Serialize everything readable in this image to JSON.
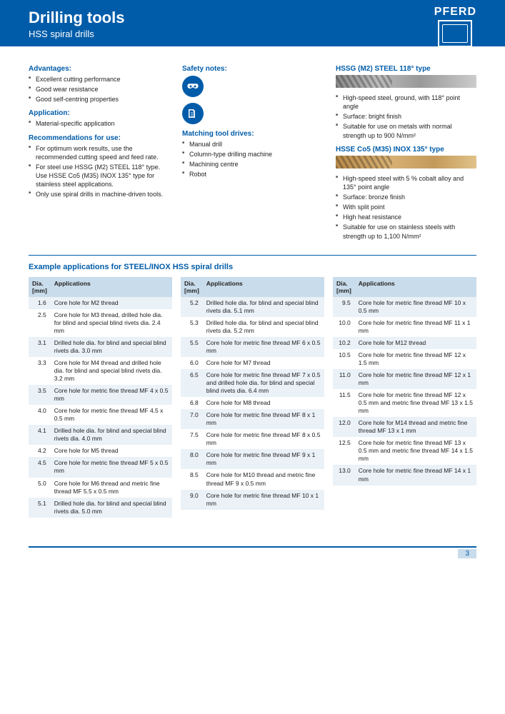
{
  "brand": "PFERD",
  "header": {
    "title": "Drilling tools",
    "subtitle": "HSS spiral drills"
  },
  "col1": {
    "advantages_h": "Advantages:",
    "advantages": [
      "Excellent cutting performance",
      "Good wear resistance",
      "Good self-centring properties"
    ],
    "applications_h": "Application:",
    "applications": [
      "Material-specific application"
    ],
    "rec_h": "Recommendations for use:",
    "rec": [
      "For optimum work results, use the recommended cutting speed and feed rate.",
      "For steel use HSSG (M2) STEEL 118° type. Use HSSE Co5 (M35) INOX 135° type for stainless steel applications.",
      "Only use spiral drills in machine-driven tools."
    ]
  },
  "col2": {
    "safety_h": "Safety notes:",
    "drives_h": "Matching tool drives:",
    "drives": [
      "Manual drill",
      "Column-type drilling machine",
      "Machining centre",
      "Robot"
    ]
  },
  "col3": {
    "type1_h": "HSSG (M2) STEEL 118° type",
    "type1_list": [
      "High-speed steel, ground, with 118° point angle",
      "Surface: bright finish",
      "Suitable for use on metals with normal strength up to 900 N/mm²"
    ],
    "type2_h": "HSSE Co5 (M35) INOX 135° type",
    "type2_list": [
      "High-speed steel with 5 % cobalt alloy and 135° point angle",
      "Surface: bronze finish",
      "With split point",
      "High heat resistance",
      "Suitable for use on stainless steels with strength up to 1,100 N/mm²"
    ]
  },
  "example_h": "Example applications for STEEL/INOX HSS spiral drills",
  "th_dia": "Dia. [mm]",
  "th_app": "Applications",
  "t1": [
    [
      "1.6",
      "Core hole for M2 thread"
    ],
    [
      "2.5",
      "Core hole for M3 thread, drilled hole dia. for blind and special blind rivets dia. 2.4 mm"
    ],
    [
      "3.1",
      "Drilled hole dia. for blind and special blind rivets dia. 3.0 mm"
    ],
    [
      "3.3",
      "Core hole for M4 thread and drilled hole dia. for blind and special blind rivets dia. 3.2 mm"
    ],
    [
      "3.5",
      "Core hole for metric fine thread MF 4 x 0.5 mm"
    ],
    [
      "4.0",
      "Core hole for metric fine thread MF 4.5 x 0.5 mm"
    ],
    [
      "4.1",
      "Drilled hole dia. for blind and special blind rivets dia. 4.0 mm"
    ],
    [
      "4.2",
      "Core hole for M5 thread"
    ],
    [
      "4.5",
      "Core hole for metric fine thread MF 5 x 0.5 mm"
    ],
    [
      "5.0",
      "Core hole for M6 thread and metric fine thread MF 5.5 x 0.5 mm"
    ],
    [
      "5.1",
      "Drilled hole dia. for blind and special blind rivets dia. 5.0 mm"
    ]
  ],
  "t2": [
    [
      "5.2",
      "Drilled hole dia. for blind and special blind rivets dia. 5.1 mm"
    ],
    [
      "5.3",
      "Drilled hole dia. for blind and special blind rivets dia. 5.2 mm"
    ],
    [
      "5.5",
      "Core hole for metric fine thread MF 6 x 0.5 mm"
    ],
    [
      "6.0",
      "Core hole for M7 thread"
    ],
    [
      "6.5",
      "Core hole for metric fine thread MF 7 x 0.5 and drilled hole dia. for blind and special blind rivets dia. 6.4 mm"
    ],
    [
      "6.8",
      "Core hole for M8 thread"
    ],
    [
      "7.0",
      "Core hole for metric fine thread MF 8 x 1 mm"
    ],
    [
      "7.5",
      "Core hole for metric fine thread MF 8 x 0.5 mm"
    ],
    [
      "8.0",
      "Core hole for metric fine thread MF 9 x 1 mm"
    ],
    [
      "8.5",
      "Core hole for M10 thread and metric fine thread MF 9 x 0.5 mm"
    ],
    [
      "9.0",
      "Core hole for metric fine thread MF 10 x 1 mm"
    ]
  ],
  "t3": [
    [
      "9.5",
      "Core hole for metric fine thread MF 10 x 0.5 mm"
    ],
    [
      "10.0",
      "Core hole for metric fine thread MF 11 x 1 mm"
    ],
    [
      "10.2",
      "Core hole for M12 thread"
    ],
    [
      "10.5",
      "Core hole for metric fine thread MF 12 x 1.5 mm"
    ],
    [
      "11.0",
      "Core hole for metric fine thread MF 12 x 1 mm"
    ],
    [
      "11.5",
      "Core hole for metric fine thread MF 12 x 0.5 mm and metric fine thread MF 13 x 1.5 mm"
    ],
    [
      "12.0",
      "Core hole for M14 thread and metric fine thread MF 13 x 1 mm"
    ],
    [
      "12.5",
      "Core hole for metric fine thread MF 13 x 0.5 mm and metric fine thread MF 14 x 1.5 mm"
    ],
    [
      "13.0",
      "Core hole for metric fine thread MF 14 x 1 mm"
    ]
  ],
  "page_num": "3"
}
